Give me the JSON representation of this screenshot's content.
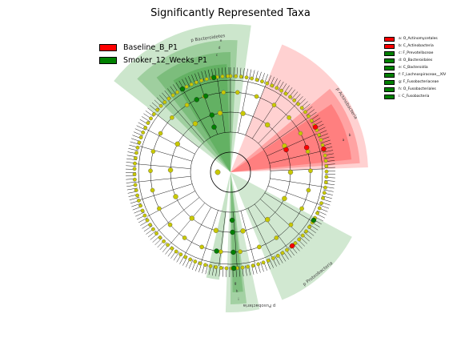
{
  "title": "Significantly Represented Taxa",
  "legend": [
    {
      "label": "Baseline_B_P1",
      "color": "#ff0000"
    },
    {
      "label": "Smoker_12_Weeks_P1",
      "color": "#008000"
    }
  ],
  "clade_legend": [
    {
      "label": "a: O_Actinomycetales",
      "color": "#ff0000"
    },
    {
      "label": "b: C_Actinobacteria",
      "color": "#ff0000"
    },
    {
      "label": "c: F_Prevotellaceae",
      "color": "#008000"
    },
    {
      "label": "d: O_Bacteroidales",
      "color": "#008000"
    },
    {
      "label": "e: C_Bacteroidia",
      "color": "#008000"
    },
    {
      "label": "f: F_Lachnospiraceae__XIV",
      "color": "#008000"
    },
    {
      "label": "g: F_Fusobacteriaceae",
      "color": "#008000"
    },
    {
      "label": "h: O_Fusobacteriales",
      "color": "#008000"
    },
    {
      "label": "i: C_Fusobacteria",
      "color": "#008000"
    }
  ],
  "sector_labels": {
    "bacteroidetes": "p Bacteroidetes",
    "actinobacteria": "p Actinobacteria",
    "proteobacteria": "p Proteobacteria",
    "fusobacteria": "p Fusobacteria"
  },
  "clade_letters": {
    "a": "a",
    "b": "b",
    "c": "c",
    "d": "d",
    "e": "e",
    "g": "g",
    "h": "h",
    "i": "i"
  },
  "colors": {
    "node_default": "#c8c800",
    "node_red": "#ff0000",
    "node_green": "#008000",
    "shade_red": "#ff0000",
    "shade_green": "#008000"
  }
}
